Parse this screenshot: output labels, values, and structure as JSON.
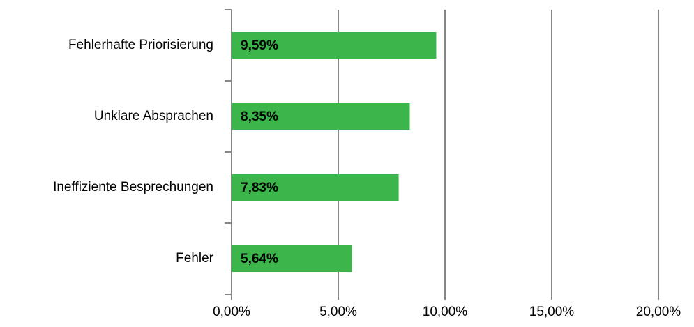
{
  "chart_data": {
    "type": "bar",
    "orientation": "horizontal",
    "categories": [
      "Fehlerhafte Priorisierung",
      "Unklare Absprachen",
      "Ineffiziente Besprechungen",
      "Fehler"
    ],
    "values": [
      9.59,
      8.35,
      7.83,
      5.64
    ],
    "value_labels": [
      "9,59%",
      "8,35%",
      "7,83%",
      "5,64%"
    ],
    "color": "#3cb54b",
    "xlim": [
      0,
      20
    ],
    "xticks": [
      {
        "value": 0,
        "label": "0,00%"
      },
      {
        "value": 5,
        "label": "5,00%"
      },
      {
        "value": 10,
        "label": "10,00%"
      },
      {
        "value": 15,
        "label": "15,00%"
      },
      {
        "value": 20,
        "label": "20,00%"
      }
    ],
    "grid": true
  }
}
